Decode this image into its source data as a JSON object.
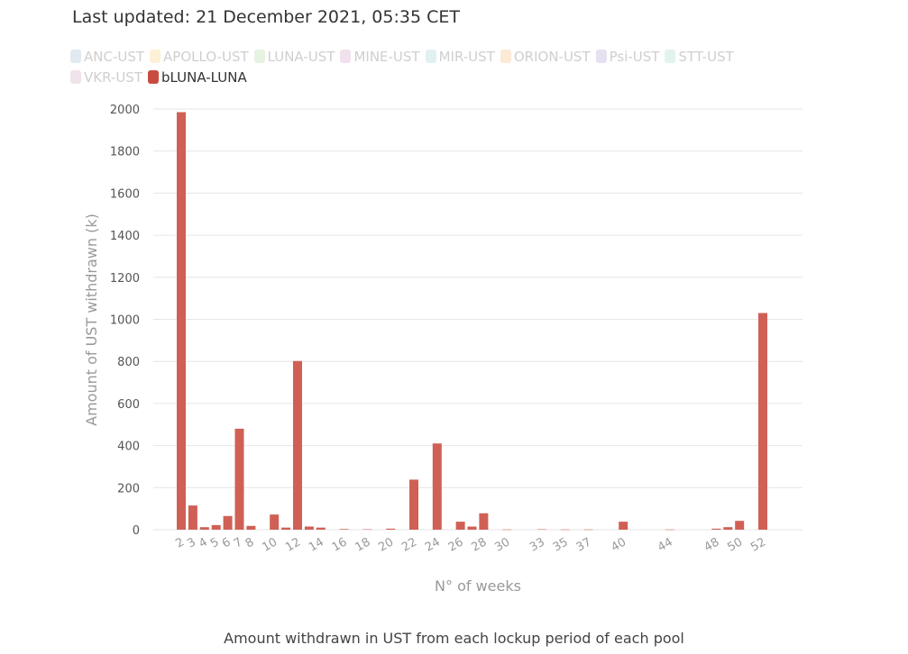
{
  "header": {
    "last_updated": "Last updated: 21 December 2021, 05:35 CET"
  },
  "legend": [
    {
      "label": "ANC-UST",
      "color": "#a8c0d8",
      "active": false
    },
    {
      "label": "APOLLO-UST",
      "color": "#f5d48a",
      "active": false
    },
    {
      "label": "LUNA-UST",
      "color": "#b8dca8",
      "active": false
    },
    {
      "label": "MINE-UST",
      "color": "#d8a8c8",
      "active": false
    },
    {
      "label": "MIR-UST",
      "color": "#a8d8dc",
      "active": false
    },
    {
      "label": "ORION-UST",
      "color": "#f5c08a",
      "active": false
    },
    {
      "label": "Psi-UST",
      "color": "#b8a8d8",
      "active": false
    },
    {
      "label": "STT-UST",
      "color": "#a8dcc8",
      "active": false
    },
    {
      "label": "VKR-UST",
      "color": "#d8b0c8",
      "active": false
    },
    {
      "label": "bLUNA-LUNA",
      "color": "#c94c40",
      "active": true
    }
  ],
  "caption": "Amount withdrawn in UST from each lockup period of each pool",
  "chart_data": {
    "type": "bar",
    "xlabel": "N° of weeks",
    "ylabel": "Amount of UST withdrawn (k)",
    "ylim": [
      0,
      2000
    ],
    "yticks": [
      0,
      200,
      400,
      600,
      800,
      1000,
      1200,
      1400,
      1600,
      1800,
      2000
    ],
    "grid": true,
    "legend_position": "top",
    "bar_color": "#d06055",
    "categories": [
      "2",
      "3",
      "4",
      "5",
      "6",
      "7",
      "8",
      "10",
      "11",
      "12",
      "13",
      "14",
      "16",
      "18",
      "20",
      "22",
      "24",
      "26",
      "27",
      "28",
      "30",
      "33",
      "35",
      "37",
      "40",
      "44",
      "48",
      "49",
      "50",
      "52"
    ],
    "tick_labels": [
      "2",
      "3",
      "4",
      "5",
      "6",
      "7",
      "8",
      "10",
      "12",
      "14",
      "16",
      "18",
      "20",
      "22",
      "24",
      "26",
      "28",
      "30",
      "33",
      "35",
      "37",
      "40",
      "44",
      "48",
      "50",
      "52"
    ],
    "series": [
      {
        "name": "bLUNA-LUNA",
        "values": [
          1985,
          115,
          12,
          22,
          65,
          480,
          18,
          72,
          10,
          802,
          15,
          10,
          3,
          2,
          5,
          238,
          410,
          38,
          15,
          78,
          1,
          2,
          1,
          1,
          38,
          1,
          5,
          12,
          42,
          1030
        ]
      }
    ]
  }
}
